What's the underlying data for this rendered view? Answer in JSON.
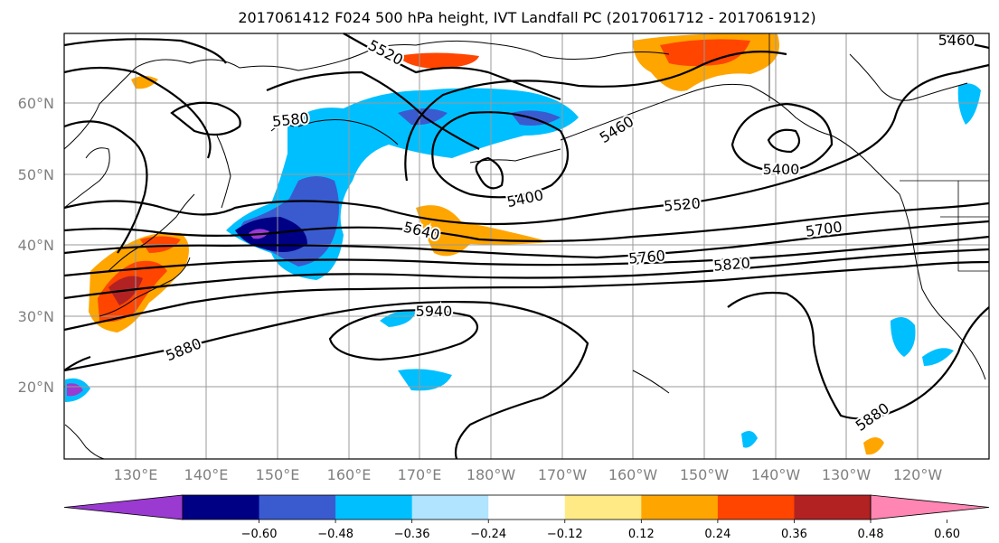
{
  "title": "2017061412 F024 500 hPa height, IVT Landfall PC (2017061712 - 2017061912)",
  "map": {
    "lat_labels": [
      "60°N",
      "50°N",
      "40°N",
      "30°N",
      "20°N"
    ],
    "lon_labels": [
      "130°E",
      "140°E",
      "150°E",
      "160°E",
      "170°E",
      "180°W",
      "170°W",
      "160°W",
      "150°W",
      "140°W",
      "130°W",
      "120°W"
    ],
    "contour_labels": [
      "5520",
      "5580",
      "5460",
      "5400",
      "5400",
      "5520",
      "5640",
      "5700",
      "5760",
      "5820",
      "5940",
      "5880",
      "5880",
      "5460"
    ]
  },
  "colorbar": {
    "tick_labels": [
      "−0.60",
      "−0.48",
      "−0.36",
      "−0.24",
      "−0.12",
      "0.12",
      "0.24",
      "0.36",
      "0.48",
      "0.60"
    ],
    "colors": [
      "#9a3ad0",
      "#000085",
      "#3a5bd0",
      "#00bfff",
      "#b0e4ff",
      "#ffffff",
      "#ffea85",
      "#ffa500",
      "#ff4500",
      "#b22222",
      "#ff85b2"
    ]
  }
}
